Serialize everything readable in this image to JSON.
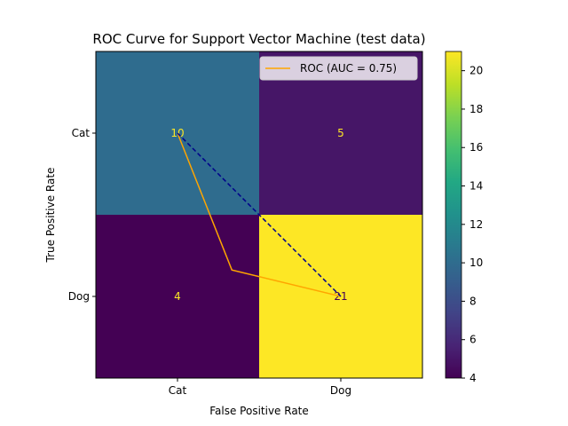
{
  "chart_data": {
    "type": "heatmap",
    "title": "ROC Curve for Support Vector Machine (test data)",
    "xlabel": "False Positive Rate",
    "ylabel": "True Positive Rate",
    "x_categories": [
      "Cat",
      "Dog"
    ],
    "y_categories": [
      "Cat",
      "Dog"
    ],
    "matrix": [
      [
        10,
        5
      ],
      [
        4,
        21
      ]
    ],
    "colorbar": {
      "min": 4,
      "max": 21,
      "ticks": [
        4,
        6,
        8,
        10,
        12,
        14,
        16,
        18,
        20
      ],
      "colormap": "viridis"
    },
    "overlay_lines": [
      {
        "name": "ROC (AUC = 0.75)",
        "color": "#ffa500",
        "style": "solid",
        "points": [
          [
            0.0,
            0.0
          ],
          [
            0.333,
            0.838
          ],
          [
            1.0,
            1.0
          ]
        ]
      },
      {
        "name": "",
        "color": "#00008b",
        "style": "dashed",
        "points": [
          [
            0.0,
            0.0
          ],
          [
            1.0,
            1.0
          ]
        ]
      }
    ],
    "legend_position": "top-right",
    "grid": false
  }
}
